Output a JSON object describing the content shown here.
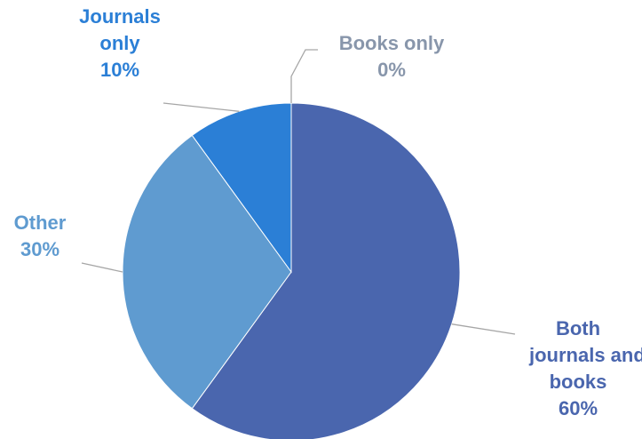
{
  "chart_data": {
    "type": "pie",
    "start_angle_deg": 0,
    "direction": "clockwise",
    "slices": [
      {
        "label_lines": [
          "Both",
          "journals and",
          "books"
        ],
        "percent_label": "60%",
        "value": 60,
        "color": "#4a66ae",
        "label_color": "#4a66ae"
      },
      {
        "label_lines": [
          "Other"
        ],
        "percent_label": "30%",
        "value": 30,
        "color": "#5f9bd0",
        "label_color": "#5f9bd0"
      },
      {
        "label_lines": [
          "Journals",
          "only"
        ],
        "percent_label": "10%",
        "value": 10,
        "color": "#2b7fd6",
        "label_color": "#2b7fd6"
      },
      {
        "label_lines": [
          "Books only"
        ],
        "percent_label": "0%",
        "value": 0,
        "color": "#8896ab",
        "label_color": "#8896ab"
      }
    ],
    "leader_line_color": "#a6a6a6",
    "legend": "none",
    "title": ""
  }
}
